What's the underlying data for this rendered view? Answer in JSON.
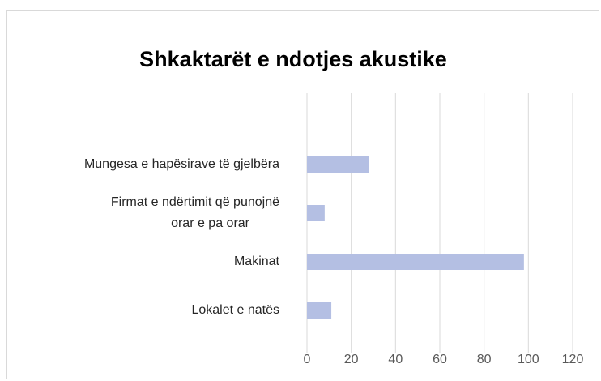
{
  "chart_data": {
    "type": "barh",
    "title": "Shkaktarët e ndotjes akustike",
    "categories": [
      "Mungesa e hapësirave të gjelbëra",
      "Firmat e ndërtimit që punojnë\norar e pa orar",
      "Makinat",
      "Lokalet e natës"
    ],
    "values": [
      28,
      8,
      98,
      11
    ],
    "color": "#b4bfe3",
    "xlim": [
      0,
      120
    ],
    "xticks": [
      0,
      20,
      40,
      60,
      80,
      100,
      120
    ],
    "grid": true
  }
}
